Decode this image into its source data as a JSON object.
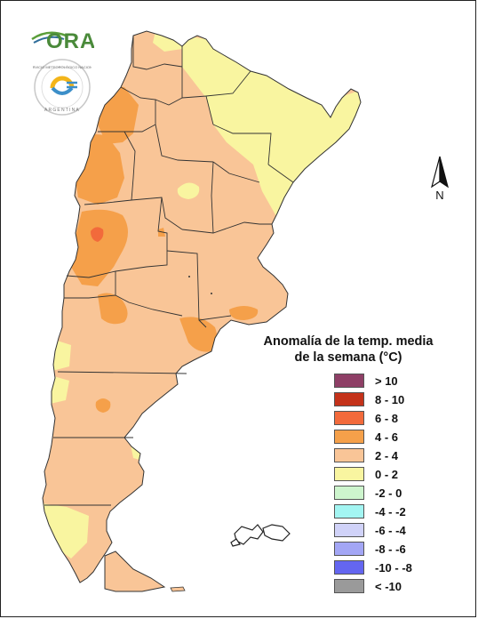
{
  "legend": {
    "title_line1": "Anomalía de la temp. media",
    "title_line2": "de la semana (°C)",
    "items": [
      {
        "label": "> 10",
        "color": "#8e3f66"
      },
      {
        "label": "8 - 10",
        "color": "#c4321a"
      },
      {
        "label": "6 - 8",
        "color": "#f26a3b"
      },
      {
        "label": "4 - 6",
        "color": "#f5a04a"
      },
      {
        "label": "2 - 4",
        "color": "#f9c597"
      },
      {
        "label": "0 - 2",
        "color": "#f9f5a0"
      },
      {
        "label": "-2 - 0",
        "color": "#cdf5cd"
      },
      {
        "label": "-4 - -2",
        "color": "#a3f5f2"
      },
      {
        "label": "-6 - -4",
        "color": "#d0d2f8"
      },
      {
        "label": "-8 - -6",
        "color": "#a3a6f5"
      },
      {
        "label": "-10 - -8",
        "color": "#6466f0"
      },
      {
        "label": "< -10",
        "color": "#9a9a9a"
      }
    ]
  },
  "logos": {
    "ora_text": "ORA",
    "smn_ring_text": "SERVICIO METEOROLÓGICO NACIONAL",
    "smn_country": "ARGENTINA"
  },
  "north_label": "N",
  "colors": {
    "base": "#f9c597",
    "yellow": "#f9f5a0",
    "orange": "#f5a04a",
    "red": "#f26a3b",
    "border": "#333333"
  }
}
